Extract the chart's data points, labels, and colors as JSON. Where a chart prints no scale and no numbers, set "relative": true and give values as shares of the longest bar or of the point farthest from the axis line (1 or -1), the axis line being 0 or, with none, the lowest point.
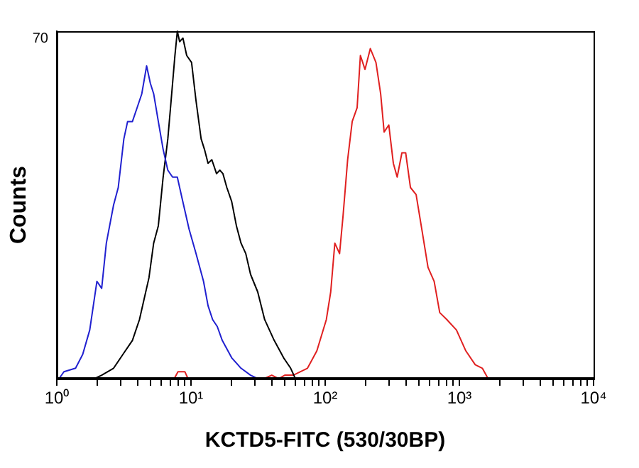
{
  "chart_data": {
    "type": "line",
    "xlabel": "KCTD5-FITC (530/30BP)",
    "ylabel": "Counts",
    "log": "x",
    "grid": false,
    "legend": false,
    "marker": "none",
    "line_style": "solid",
    "relative": true,
    "annotations": [
      "70"
    ],
    "xlim": [
      1,
      10000
    ],
    "xticks": [
      {
        "value": 1,
        "label": "10⁰"
      },
      {
        "value": 2,
        "label": null
      },
      {
        "value": 3,
        "label": null
      },
      {
        "value": 4,
        "label": null
      },
      {
        "value": 5,
        "label": null
      },
      {
        "value": 6,
        "label": null
      },
      {
        "value": 7,
        "label": null
      },
      {
        "value": 8,
        "label": null
      },
      {
        "value": 9,
        "label": null
      },
      {
        "value": 10,
        "label": "10¹"
      },
      {
        "value": 20,
        "label": null
      },
      {
        "value": 30,
        "label": null
      },
      {
        "value": 40,
        "label": null
      },
      {
        "value": 50,
        "label": null
      },
      {
        "value": 60,
        "label": null
      },
      {
        "value": 70,
        "label": null
      },
      {
        "value": 80,
        "label": null
      },
      {
        "value": 90,
        "label": null
      },
      {
        "value": 100,
        "label": "10²"
      },
      {
        "value": 200,
        "label": null
      },
      {
        "value": 300,
        "label": null
      },
      {
        "value": 400,
        "label": null
      },
      {
        "value": 500,
        "label": null
      },
      {
        "value": 600,
        "label": null
      },
      {
        "value": 700,
        "label": null
      },
      {
        "value": 800,
        "label": null
      },
      {
        "value": 900,
        "label": null
      },
      {
        "value": 1000,
        "label": "10³"
      },
      {
        "value": 2000,
        "label": null
      },
      {
        "value": 3000,
        "label": null
      },
      {
        "value": 4000,
        "label": null
      },
      {
        "value": 5000,
        "label": null
      },
      {
        "value": 6000,
        "label": null
      },
      {
        "value": 7000,
        "label": null
      },
      {
        "value": 8000,
        "label": null
      },
      {
        "value": 9000,
        "label": null
      },
      {
        "value": 10000,
        "label": "10⁴"
      }
    ],
    "series": [
      {
        "color": "#2020d0",
        "x": [
          1.04,
          1.13,
          1.38,
          1.56,
          1.76,
          1.99,
          2.16,
          2.34,
          2.65,
          2.87,
          3.16,
          3.37,
          3.66,
          3.97,
          4.3,
          4.67,
          4.98,
          5.27,
          5.71,
          6.2,
          6.72,
          7.29,
          7.91,
          8.57,
          9.68,
          10.9,
          12.4,
          13.4,
          14.5,
          15.7,
          17.1,
          20.1,
          23.6,
          27.8,
          31.4
        ],
        "values": [
          0,
          0.02,
          0.03,
          0.07,
          0.14,
          0.28,
          0.26,
          0.39,
          0.5,
          0.55,
          0.69,
          0.74,
          0.74,
          0.78,
          0.82,
          0.9,
          0.85,
          0.82,
          0.74,
          0.66,
          0.6,
          0.58,
          0.58,
          0.52,
          0.43,
          0.36,
          0.28,
          0.21,
          0.17,
          0.15,
          0.11,
          0.06,
          0.03,
          0.01,
          0
        ]
      },
      {
        "color": "#000000",
        "x": [
          1.91,
          2.16,
          2.65,
          3.11,
          3.66,
          4.13,
          4.48,
          4.86,
          5.27,
          5.71,
          6.2,
          6.72,
          7.11,
          7.59,
          7.91,
          8.23,
          8.71,
          9.29,
          10.1,
          10.9,
          11.9,
          12.6,
          13.4,
          14.3,
          15.5,
          16.4,
          17.3,
          18.5,
          20.1,
          21.8,
          23.6,
          25.6,
          27.8,
          31.4,
          35.4,
          41.7,
          49,
          55.3,
          60
        ],
        "values": [
          0,
          0.01,
          0.03,
          0.07,
          0.11,
          0.17,
          0.23,
          0.29,
          0.39,
          0.44,
          0.58,
          0.69,
          0.8,
          0.93,
          1,
          0.97,
          0.98,
          0.93,
          0.91,
          0.8,
          0.69,
          0.66,
          0.62,
          0.63,
          0.59,
          0.6,
          0.59,
          0.55,
          0.51,
          0.44,
          0.39,
          0.36,
          0.3,
          0.25,
          0.17,
          0.11,
          0.06,
          0.03,
          0
        ]
      },
      {
        "color": "#e02020",
        "x": [
          1.9,
          7.5,
          8,
          9,
          9.5,
          35,
          40,
          45,
          50,
          57.8,
          73.8,
          86.7,
          102,
          110,
          118,
          128,
          136,
          147,
          159,
          173,
          183,
          198,
          217,
          239,
          259,
          275,
          298,
          322,
          344,
          373,
          398,
          432,
          476,
          525,
          584,
          649,
          714,
          807,
          951,
          1117,
          1313,
          1483,
          1637
        ],
        "values": [
          0,
          0,
          0.02,
          0.02,
          0,
          0,
          0.01,
          0,
          0.01,
          0.01,
          0.03,
          0.08,
          0.17,
          0.25,
          0.39,
          0.36,
          0.47,
          0.63,
          0.74,
          0.78,
          0.93,
          0.89,
          0.95,
          0.91,
          0.82,
          0.71,
          0.73,
          0.62,
          0.58,
          0.65,
          0.65,
          0.55,
          0.53,
          0.43,
          0.32,
          0.28,
          0.19,
          0.17,
          0.14,
          0.08,
          0.04,
          0.03,
          0
        ]
      }
    ]
  }
}
